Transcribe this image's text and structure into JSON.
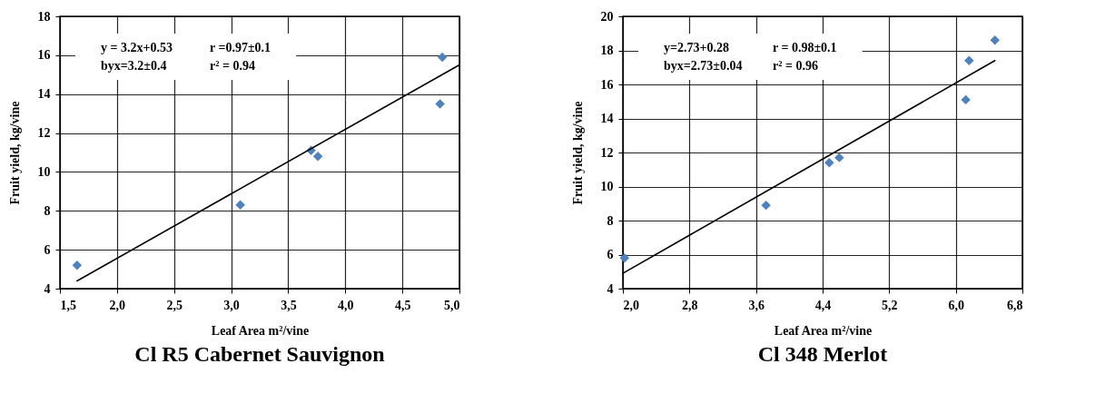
{
  "chart_data": [
    {
      "type": "scatter",
      "title": "Cl R5 Cabernet Sauvignon",
      "xlabel": "Leaf Area m²/vine",
      "ylabel": "Fruit yield, kg/vine",
      "annotations": [
        "y = 3.2x+0.53",
        "r =0.97±0.1",
        "byx=3.2±0.4",
        "r² = 0.94"
      ],
      "xlim": [
        1.5,
        5.0
      ],
      "xticks": [
        {
          "value": 1.5,
          "label": "1,5"
        },
        {
          "value": 2.0,
          "label": "2,0"
        },
        {
          "value": 2.5,
          "label": "2,5"
        },
        {
          "value": 3.0,
          "label": "3,0"
        },
        {
          "value": 3.5,
          "label": "3,5"
        },
        {
          "value": 4.0,
          "label": "4,0"
        },
        {
          "value": 4.5,
          "label": "4,5"
        },
        {
          "value": 5.0,
          "label": "5,0"
        }
      ],
      "ylim": [
        4,
        18
      ],
      "yticks": [
        4,
        6,
        8,
        10,
        12,
        14,
        16,
        18
      ],
      "grid": true,
      "series": [
        {
          "type": "scatter",
          "marker": "diamond",
          "color": "#4f81bd",
          "x": [
            1.65,
            3.08,
            3.7,
            3.76,
            4.83,
            4.85
          ],
          "values": [
            5.2,
            8.3,
            11.1,
            10.8,
            13.5,
            15.9
          ]
        },
        {
          "type": "line",
          "marker": "none",
          "color": "#000000",
          "x": [
            1.65,
            5.0
          ],
          "values": [
            4.4,
            15.5
          ]
        }
      ]
    },
    {
      "type": "scatter",
      "title": "Cl 348 Merlot",
      "xlabel": "Leaf Area m²/vine",
      "ylabel": "Fruit yield, kg/vine",
      "annotations": [
        "y=2.73+0.28",
        "r = 0.98±0.1",
        "byx=2.73±0.04",
        "r² = 0.96"
      ],
      "xlim": [
        2.0,
        6.8
      ],
      "xticks": [
        {
          "value": 2.0,
          "label": "2,0"
        },
        {
          "value": 2.8,
          "label": "2,8"
        },
        {
          "value": 3.6,
          "label": "3,6"
        },
        {
          "value": 4.4,
          "label": "4,4"
        },
        {
          "value": 5.2,
          "label": "5,2"
        },
        {
          "value": 6.0,
          "label": "6,0"
        },
        {
          "value": 6.8,
          "label": "6,8"
        }
      ],
      "ylim": [
        4,
        20
      ],
      "yticks": [
        4,
        6,
        8,
        10,
        12,
        14,
        16,
        18,
        20
      ],
      "grid": true,
      "series": [
        {
          "type": "scatter",
          "marker": "diamond",
          "color": "#4f81bd",
          "x": [
            2.02,
            3.72,
            4.48,
            4.6,
            6.12,
            6.16,
            6.47
          ],
          "values": [
            5.8,
            8.9,
            11.4,
            11.7,
            15.1,
            17.4,
            18.6
          ]
        },
        {
          "type": "line",
          "marker": "none",
          "color": "#000000",
          "x": [
            2.0,
            6.47
          ],
          "values": [
            4.9,
            17.4
          ]
        }
      ]
    }
  ]
}
